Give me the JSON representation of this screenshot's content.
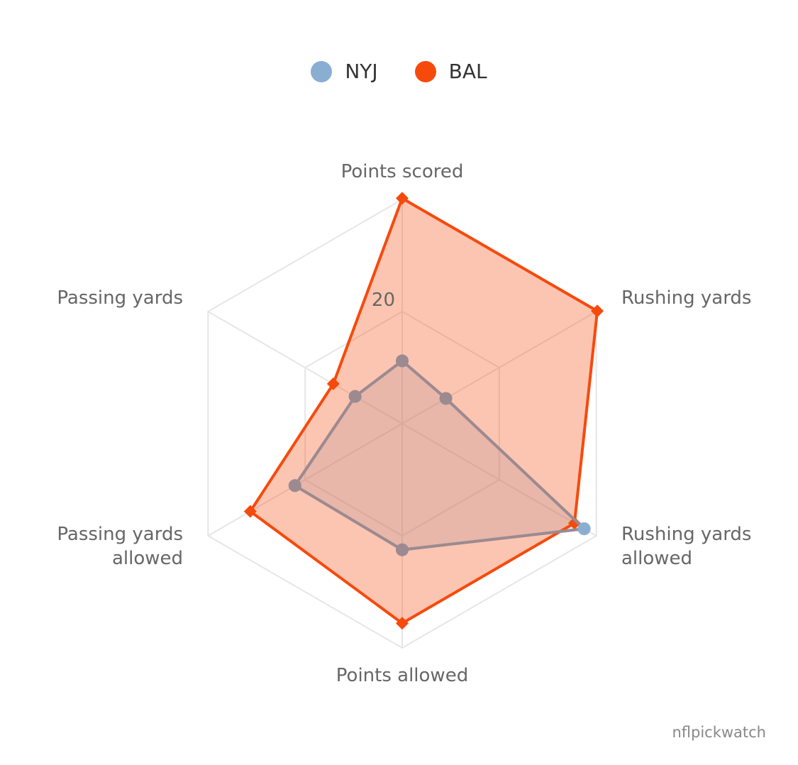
{
  "chart_data": {
    "type": "radar",
    "categories": [
      "Points scored",
      "Rushing yards",
      "Rushing yards allowed",
      "Points allowed",
      "Passing yards allowed",
      "Passing yards"
    ],
    "radial_max": 40,
    "radial_tick_label": "20",
    "grid": true,
    "legend_position": "top-center",
    "series": [
      {
        "name": "NYJ",
        "values": [
          11.2,
          9,
          37.5,
          22.5,
          22.1,
          9.7
        ],
        "color": "#8aaed2"
      },
      {
        "name": "BAL",
        "values": [
          40.2,
          40.2,
          35.5,
          35.6,
          31.3,
          14.2
        ],
        "color": "#f64a0c"
      }
    ]
  },
  "credit": "nflpickwatch"
}
